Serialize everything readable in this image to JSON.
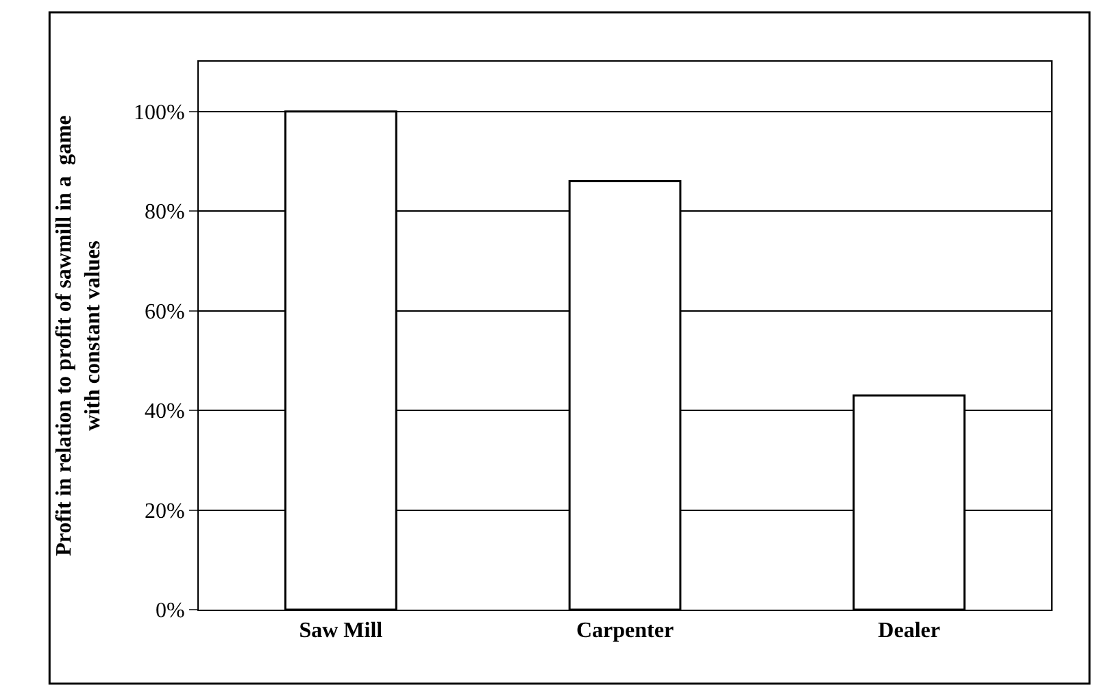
{
  "chart_data": {
    "type": "bar",
    "ylabel": "Profit in relation to profit of sawmill in a  game\nwith constant values",
    "categories": [
      "Saw Mill",
      "Carpenter",
      "Dealer"
    ],
    "values": [
      100,
      86,
      43
    ],
    "color": "#ffffff",
    "ylim": [
      0,
      110
    ],
    "yticks": [
      {
        "value": 0,
        "label": "0%"
      },
      {
        "value": 20,
        "label": "20%"
      },
      {
        "value": 40,
        "label": "40%"
      },
      {
        "value": 60,
        "label": "60%"
      },
      {
        "value": 80,
        "label": "80%"
      },
      {
        "value": 100,
        "label": "100%"
      }
    ],
    "grid": "y"
  }
}
